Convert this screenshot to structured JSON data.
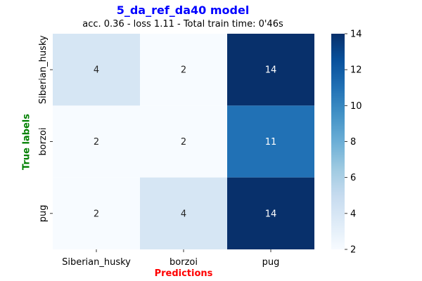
{
  "chart_data": {
    "type": "heatmap",
    "title": "5_da_ref_da40 model",
    "subtitle": "acc. 0.36 - loss 1.11 - Total train time: 0'46s",
    "xlabel": "Predictions",
    "ylabel": "True labels",
    "x_categories": [
      "Siberian_husky",
      "borzoi",
      "pug"
    ],
    "y_categories": [
      "Siberian_husky",
      "borzoi",
      "pug"
    ],
    "values": [
      [
        4,
        2,
        14
      ],
      [
        2,
        2,
        11
      ],
      [
        2,
        4,
        14
      ]
    ],
    "colorbar": {
      "min": 2,
      "max": 14,
      "ticks": [
        "2",
        "4",
        "6",
        "8",
        "10",
        "12",
        "14"
      ]
    },
    "colormap": "Blues"
  }
}
